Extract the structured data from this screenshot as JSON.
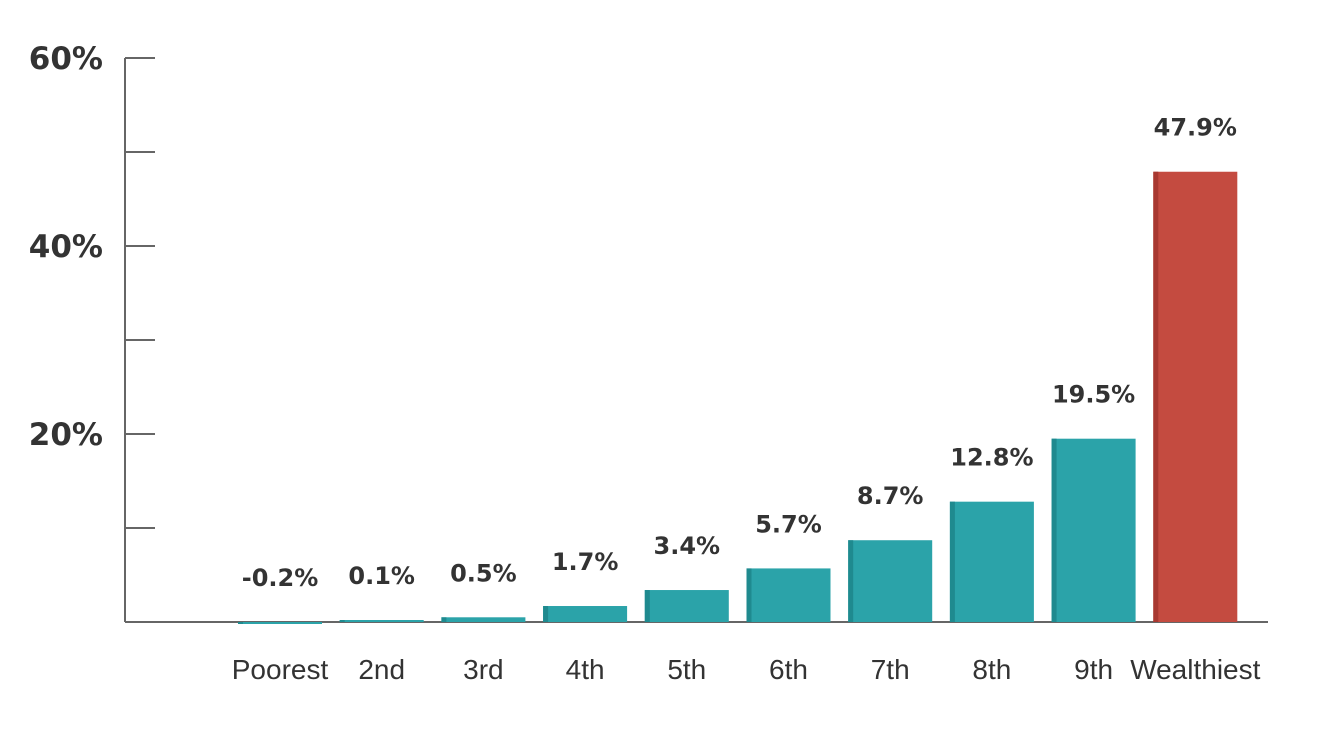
{
  "chart_data": {
    "type": "bar",
    "categories": [
      "Poorest",
      "2nd",
      "3rd",
      "4th",
      "5th",
      "6th",
      "7th",
      "8th",
      "9th",
      "Wealthiest"
    ],
    "values": [
      -0.2,
      0.1,
      0.5,
      1.7,
      3.4,
      5.7,
      8.7,
      12.8,
      19.5,
      47.9
    ],
    "data_labels": [
      "-0.2%",
      "0.1%",
      "0.5%",
      "1.7%",
      "3.4%",
      "5.7%",
      "8.7%",
      "12.8%",
      "19.5%",
      "47.9%"
    ],
    "yticks": [
      {
        "value": 20,
        "label": "20%"
      },
      {
        "value": 40,
        "label": "40%"
      },
      {
        "value": 60,
        "label": "60%"
      }
    ],
    "minor_yticks": [
      10,
      30,
      50
    ],
    "ylim": [
      0,
      60
    ],
    "title": "",
    "xlabel": "",
    "ylabel": "",
    "grid": false,
    "colors": {
      "default_bar": "#2ba3a9",
      "default_bar_edge": "#1f8a8f",
      "highlight_bar": "#c44b40",
      "highlight_bar_edge": "#a83830",
      "highlight_index": 9,
      "axis": "#666666",
      "text": "#333333"
    }
  }
}
